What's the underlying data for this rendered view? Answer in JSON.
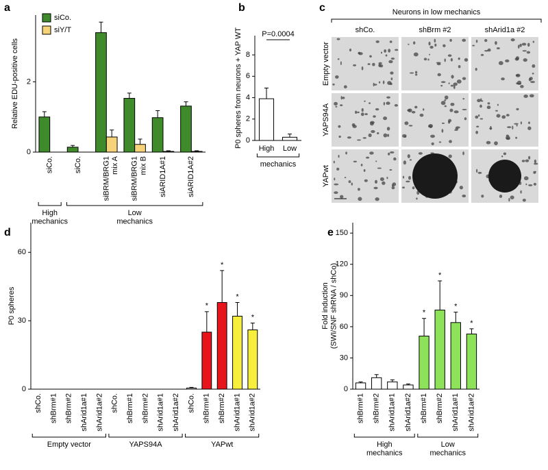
{
  "chart_data": [
    {
      "type": "bar",
      "panel": "a",
      "ylabel": "Relative EDU-positive cells",
      "groups": [
        {
          "label": "High mechanics",
          "categories": [
            "siCo."
          ]
        },
        {
          "label": "Low mechanics",
          "categories": [
            "siCo.",
            "siBRM/BRG1\nmix A",
            "siBRM/BRG1\nmix B",
            "siARID1A#1",
            "siARID1A#2"
          ]
        }
      ],
      "series": [
        {
          "name": "siCo.",
          "color": "#3f8a2a",
          "values": [
            1.0,
            0.14,
            3.4,
            1.53,
            0.98,
            1.31
          ],
          "errors": [
            0.15,
            0.05,
            0.3,
            0.15,
            0.2,
            0.12
          ]
        },
        {
          "name": "siY/T",
          "color": "#f6d278",
          "values": [
            0,
            0,
            0.43,
            0.22,
            0.02,
            0.02
          ],
          "errors": [
            0,
            0,
            0.2,
            0.15,
            0.02,
            0.02
          ]
        }
      ],
      "ylim": [
        0,
        3.9
      ],
      "yticks": [
        0,
        2
      ],
      "legend": "upper left"
    },
    {
      "type": "bar",
      "panel": "b",
      "ylabel": "P0 spheres from neurons + YAP WT",
      "annotation": "P=0.0004",
      "groups": [
        {
          "label": "mechanics",
          "categories": [
            "High",
            "Low"
          ]
        }
      ],
      "series": [
        {
          "color": "#ffffff",
          "values": [
            3.9,
            0.3
          ],
          "errors": [
            1.0,
            0.3
          ]
        }
      ],
      "ylim": [
        0,
        9.8
      ],
      "yticks": [
        0,
        2,
        4,
        6,
        8
      ]
    },
    {
      "type": "bar",
      "panel": "d",
      "ylabel": "P0 spheres",
      "groups": [
        {
          "label": "Empty vector",
          "categories": [
            "shCo.",
            "shBrm#1",
            "shBrm#2",
            "shArid1a#1",
            "shArid1a#2"
          ]
        },
        {
          "label": "YAPS94A",
          "categories": [
            "shCo.",
            "shBrm#1",
            "shBrm#2",
            "shArid1a#1",
            "shArid1a#2"
          ]
        },
        {
          "label": "YAPwt",
          "categories": [
            "shCo.",
            "shBrm#1",
            "shBrm#2",
            "shArid1a#1",
            "shArid1a#2"
          ]
        }
      ],
      "series": [
        {
          "values": [
            0,
            0,
            0,
            0,
            0,
            0,
            0,
            0,
            0,
            0,
            0.5,
            25,
            38,
            32,
            26
          ],
          "errors": [
            0,
            0,
            0,
            0,
            0,
            0,
            0,
            0,
            0,
            0,
            0.3,
            9,
            14,
            6,
            3
          ],
          "colors": [
            "#ffffff",
            "#ffffff",
            "#ffffff",
            "#ffffff",
            "#ffffff",
            "#ffffff",
            "#ffffff",
            "#ffffff",
            "#ffffff",
            "#ffffff",
            "#ffffff",
            "#e8141b",
            "#e8141b",
            "#f7ef3b",
            "#f7ef3b"
          ],
          "value_marks": [
            null,
            null,
            null,
            null,
            null,
            null,
            null,
            null,
            null,
            null,
            null,
            "*",
            "*",
            "*",
            "*"
          ]
        }
      ],
      "ylim": [
        0,
        73
      ],
      "yticks": [
        0,
        30,
        60
      ]
    },
    {
      "type": "bar",
      "panel": "e",
      "ylabel": "Fold induction\n(SWI/SNF shRNA / shCo)",
      "groups": [
        {
          "label": "High mechanics",
          "categories": [
            "shBrm#1",
            "shBrm#2",
            "shArid1a#1",
            "shArid1a#2"
          ]
        },
        {
          "label": "Low mechanics",
          "categories": [
            "shBrm#1",
            "shBrm#2",
            "shArid1a#1",
            "shArid1a#2"
          ]
        }
      ],
      "series": [
        {
          "values": [
            6,
            11,
            7,
            4,
            51,
            76,
            64,
            53
          ],
          "errors": [
            1,
            3,
            2,
            1,
            17,
            28,
            10,
            5
          ],
          "colors": [
            "#ffffff",
            "#ffffff",
            "#ffffff",
            "#ffffff",
            "#8ee25a",
            "#8ee25a",
            "#8ee25a",
            "#8ee25a"
          ],
          "value_marks": [
            null,
            null,
            null,
            null,
            "*",
            "*",
            "*",
            "*"
          ]
        }
      ],
      "ylim": [
        0,
        160
      ],
      "yticks": [
        0,
        30,
        60,
        90,
        120,
        150
      ]
    }
  ],
  "image_panel": {
    "panel": "c",
    "title": "Neurons in low mechanics",
    "columns": [
      "shCo.",
      "shBrm #2",
      "shArid1a #2"
    ],
    "rows": [
      "Empty vector",
      "YAPS94A",
      "YAPwt"
    ]
  }
}
